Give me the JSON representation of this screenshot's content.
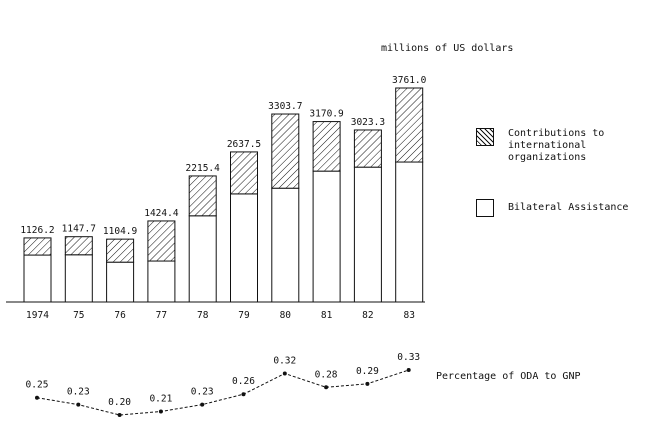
{
  "chart_data": [
    {
      "type": "bar",
      "stacked": true,
      "units_label": "millions of US dollars",
      "categories": [
        "1974",
        "75",
        "76",
        "77",
        "78",
        "79",
        "80",
        "81",
        "82",
        "83"
      ],
      "totals": [
        1126.2,
        1147.7,
        1104.9,
        1424.4,
        2215.4,
        2637.5,
        3303.7,
        3170.9,
        3023.3,
        3761.0
      ],
      "total_labels": [
        "1126.2",
        "1147.7",
        "1104.9",
        "1424.4",
        "2215.4",
        "2637.5",
        "3303.7",
        "3170.9",
        "3023.3",
        "3761.0"
      ],
      "series": [
        {
          "name": "Bilateral Assistance",
          "values": [
            825,
            830,
            700,
            720,
            1515,
            1900,
            2000,
            2300,
            2370,
            2460
          ],
          "pattern": "plain"
        },
        {
          "name": "Contributions to\ninternational\norganizations",
          "values": [
            301.2,
            317.7,
            404.9,
            704.4,
            700.4,
            737.5,
            1303.7,
            870.9,
            653.3,
            1301.0
          ],
          "pattern": "hatched"
        }
      ],
      "ylim": [
        0,
        3900
      ],
      "grid": false,
      "legend_position": "right"
    },
    {
      "type": "line",
      "series_label": "Percentage of ODA to GNP",
      "categories": [
        "1974",
        "75",
        "76",
        "77",
        "78",
        "79",
        "80",
        "81",
        "82",
        "83"
      ],
      "values": [
        0.25,
        0.23,
        0.2,
        0.21,
        0.23,
        0.26,
        0.32,
        0.28,
        0.29,
        0.33
      ],
      "value_labels": [
        "0.25",
        "0.23",
        "0.20",
        "0.21",
        "0.23",
        "0.26",
        "0.32",
        "0.28",
        "0.29",
        "0.33"
      ],
      "ylim": [
        0.2,
        0.33
      ]
    }
  ]
}
